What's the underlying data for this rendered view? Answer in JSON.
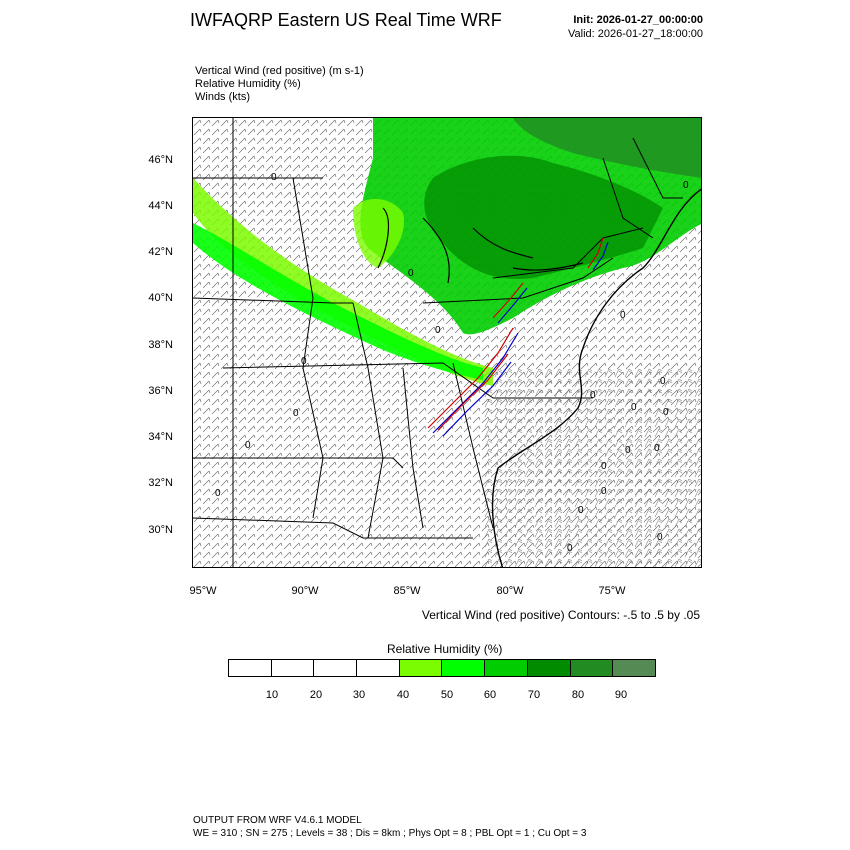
{
  "header": {
    "title": "IWFAQRP Eastern US Real Time WRF",
    "init": "Init: 2026-01-27_00:00:00",
    "valid": "Valid: 2026-01-27_18:00:00"
  },
  "fields": [
    "Vertical Wind (red positive)   (m s-1)",
    "Relative Humidity   (%)",
    "Winds   (kts)"
  ],
  "map": {
    "lat_labels": [
      "46°N",
      "44°N",
      "42°N",
      "40°N",
      "38°N",
      "36°N",
      "34°N",
      "32°N",
      "30°N"
    ],
    "lon_labels": [
      "95°W",
      "90°W",
      "85°W",
      "80°W",
      "75°W"
    ],
    "contour_note": "Vertical Wind (red positive) Contours: -.5 to .5 by .05",
    "contour_zero_label": "0"
  },
  "colorbar": {
    "title": "Relative Humidity  (%)",
    "labels": [
      "10",
      "20",
      "30",
      "40",
      "50",
      "60",
      "70",
      "80",
      "90"
    ],
    "colors": [
      "#ffffff",
      "#ffffff",
      "#ffffff",
      "#ffffff",
      "#7cfc00",
      "#00ff00",
      "#00cd00",
      "#008b00",
      "#228b22",
      "#548b54"
    ]
  },
  "footer": {
    "line1": "OUTPUT FROM WRF V4.6.1 MODEL",
    "line2": "WE = 310 ; SN = 275 ; Levels = 38 ; Dis = 8km ; Phys Opt = 8 ; PBL Opt = 1 ; Cu Opt = 3"
  }
}
